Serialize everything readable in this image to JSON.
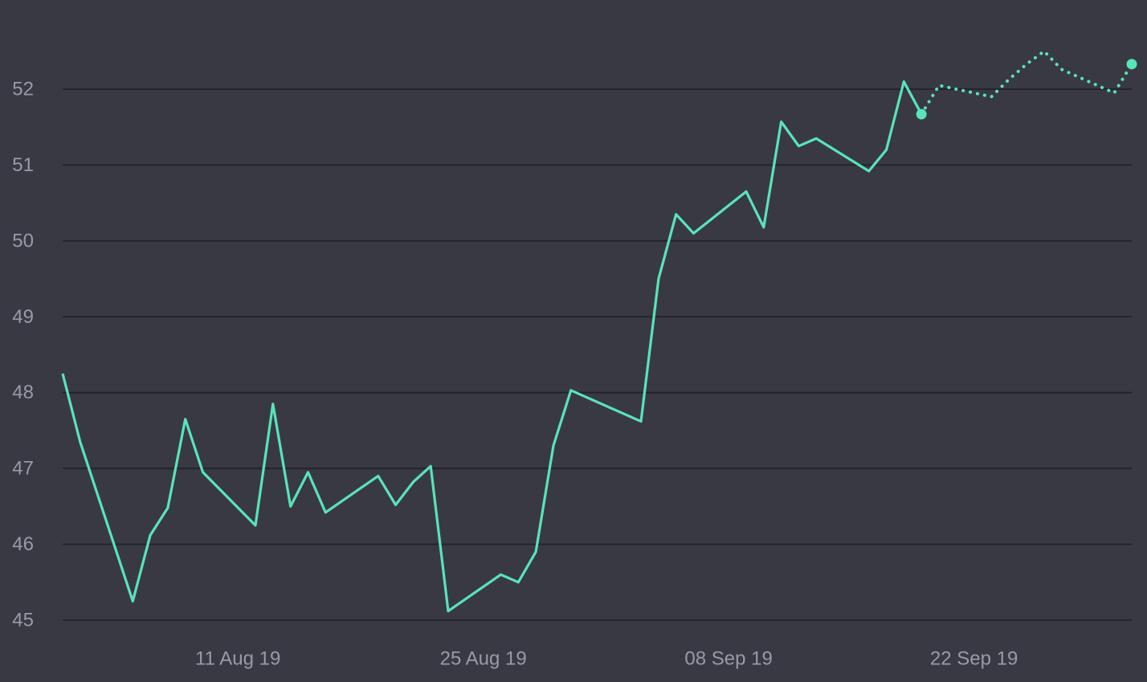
{
  "chart_data": {
    "type": "line",
    "title": "",
    "xlabel": "",
    "ylabel": "",
    "ylim": [
      44.7,
      53.1
    ],
    "xlim": [
      "2019-08-01",
      "2019-10-01"
    ],
    "y_ticks": [
      45,
      46,
      47,
      48,
      49,
      50,
      51,
      52
    ],
    "y_tick_labels": [
      "45",
      "46",
      "47",
      "48",
      "49",
      "50",
      "51",
      "52"
    ],
    "x_ticks": [
      "2019-08-11",
      "2019-08-25",
      "2019-09-08",
      "2019-09-22"
    ],
    "x_tick_labels": [
      "11 Aug 19",
      "25 Aug 19",
      "08 Sep 19",
      "22 Sep 19"
    ],
    "grid": "horizontal",
    "legend": "none",
    "colors": {
      "background": "#393944",
      "grid": "#24242b",
      "line": "#59e4b8",
      "tick_label": "#9a9aa6"
    },
    "series": [
      {
        "style": "solid",
        "x": [
          "2019-08-01",
          "2019-08-02",
          "2019-08-05",
          "2019-08-06",
          "2019-08-07",
          "2019-08-08",
          "2019-08-09",
          "2019-08-12",
          "2019-08-13",
          "2019-08-14",
          "2019-08-15",
          "2019-08-16",
          "2019-08-19",
          "2019-08-20",
          "2019-08-21",
          "2019-08-22",
          "2019-08-23",
          "2019-08-26",
          "2019-08-27",
          "2019-08-28",
          "2019-08-29",
          "2019-08-30",
          "2019-09-03",
          "2019-09-04",
          "2019-09-05",
          "2019-09-06",
          "2019-09-09",
          "2019-09-10",
          "2019-09-11",
          "2019-09-12",
          "2019-09-13",
          "2019-09-16",
          "2019-09-17",
          "2019-09-18",
          "2019-09-19"
        ],
        "values": [
          48.25,
          47.35,
          45.25,
          46.12,
          46.48,
          47.65,
          46.95,
          46.25,
          47.85,
          46.5,
          46.95,
          46.42,
          46.9,
          46.52,
          46.82,
          47.03,
          45.12,
          45.6,
          45.5,
          45.9,
          47.3,
          48.03,
          47.62,
          49.5,
          50.35,
          50.1,
          50.65,
          50.18,
          51.57,
          51.25,
          51.35,
          50.92,
          51.2,
          52.1,
          51.67
        ]
      },
      {
        "style": "dotted",
        "x": [
          "2019-09-19",
          "2019-09-20",
          "2019-09-23",
          "2019-09-24",
          "2019-09-25",
          "2019-09-26",
          "2019-09-27",
          "2019-09-30",
          "2019-10-01"
        ],
        "values": [
          51.67,
          52.05,
          51.9,
          52.13,
          52.33,
          52.5,
          52.26,
          51.95,
          52.33
        ]
      }
    ]
  }
}
